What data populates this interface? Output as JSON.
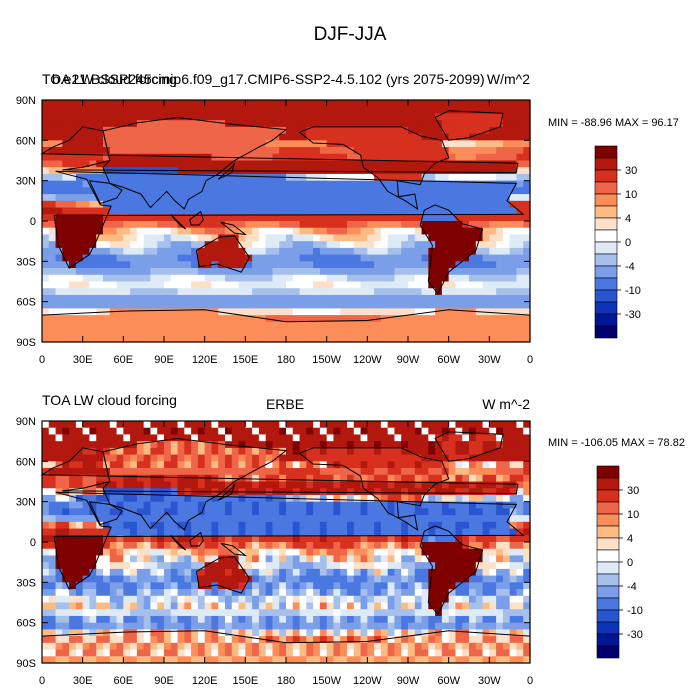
{
  "figure": {
    "title": "DJF-JJA"
  },
  "chart_data": [
    {
      "type": "heatmap",
      "panel": "top",
      "left_title": "TOA LW cloud forcing",
      "center_title": "b.e21.BSSP245cmip6.f09_g17.CMIP6-SSP2-4.5.102 (yrs 2075-2099)",
      "units": "W/m^2",
      "stats": "MIN = -88.96 MAX =  96.17",
      "xlabels": [
        "0",
        "30E",
        "60E",
        "90E",
        "120E",
        "150E",
        "180",
        "150W",
        "120W",
        "90W",
        "60W",
        "30W",
        "0"
      ],
      "ylabels": [
        "90N",
        "60N",
        "30N",
        "0",
        "30S",
        "60S",
        "90S"
      ],
      "x_range": [
        0,
        360
      ],
      "y_range": [
        -90,
        90
      ],
      "colorbar_labels": [
        "30",
        "10",
        "4",
        "0",
        "-4",
        "-10",
        "-30"
      ]
    },
    {
      "type": "heatmap",
      "panel": "bottom",
      "left_title": "TOA LW cloud forcing",
      "center_title": "ERBE",
      "units": "W m^-2",
      "stats": "MIN = -106.05 MAX =  78.82",
      "xlabels": [
        "0",
        "30E",
        "60E",
        "90E",
        "120E",
        "150E",
        "180",
        "150W",
        "120W",
        "90W",
        "60W",
        "30W",
        "0"
      ],
      "ylabels": [
        "90N",
        "60N",
        "30N",
        "0",
        "30S",
        "60S",
        "90S"
      ],
      "x_range": [
        0,
        360
      ],
      "y_range": [
        -90,
        90
      ],
      "colorbar_labels": [
        "30",
        "10",
        "4",
        "0",
        "-4",
        "-10",
        "-30"
      ]
    }
  ],
  "colors": [
    "#7f0000",
    "#b2180e",
    "#d7301f",
    "#ef6548",
    "#fc8d59",
    "#fdbb84",
    "#fde0c8",
    "#ffffff",
    "#deebf7",
    "#a6c0ec",
    "#7a9ee8",
    "#4a78e0",
    "#2a55d0",
    "#0c33b8",
    "#00169a",
    "#00006e"
  ]
}
